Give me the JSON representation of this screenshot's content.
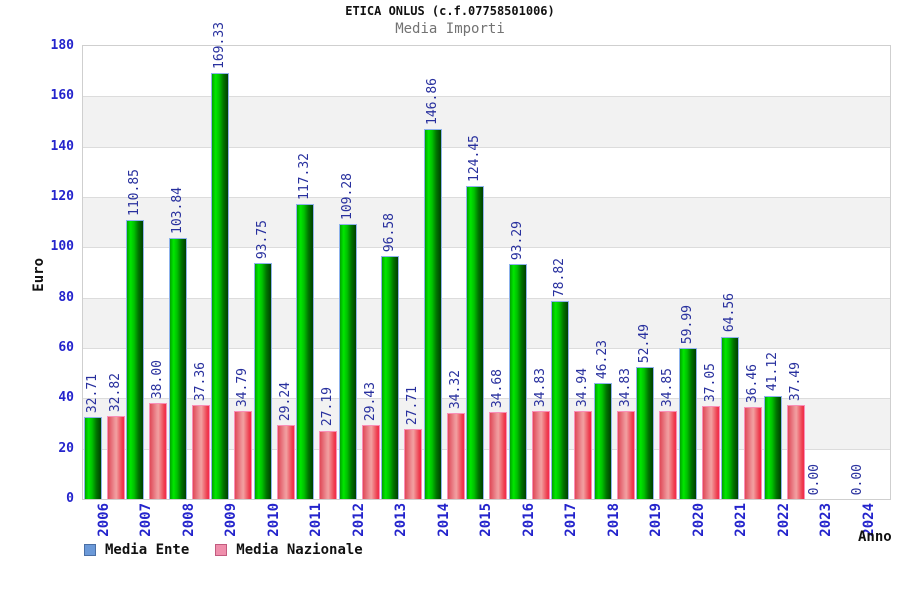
{
  "page": {
    "title": "ETICA ONLUS (c.f.07758501006)",
    "subtitle": "Media Importi"
  },
  "chart_data": {
    "type": "bar",
    "title": "ETICA ONLUS (c.f.07758501006)",
    "subtitle": "Media Importi",
    "xlabel": "Anno",
    "ylabel": "Euro",
    "ylim": [
      0,
      180
    ],
    "ytick_step": 20,
    "grid": "horizontal-bands-alternating",
    "legend_position": "bottom-left",
    "categories": [
      "2006",
      "2007",
      "2008",
      "2009",
      "2010",
      "2011",
      "2012",
      "2013",
      "2014",
      "2015",
      "2016",
      "2017",
      "2018",
      "2019",
      "2020",
      "2021",
      "2022",
      "2023",
      "2024"
    ],
    "series": [
      {
        "name": "Media Ente",
        "legend_color": "#6b99d8",
        "legend_border": "#4a6fa5",
        "bar_border": "#8fb2ec",
        "bar_gradient": [
          "#00a300 0%",
          "#00e800 22%",
          "#00c000 45%",
          "#007200 72%",
          "#003f00 100%"
        ],
        "values": [
          32.71,
          110.85,
          103.84,
          169.33,
          93.75,
          117.32,
          109.28,
          96.58,
          146.86,
          124.45,
          93.29,
          78.82,
          46.23,
          52.49,
          59.99,
          64.56,
          41.12,
          0.0,
          0.0
        ]
      },
      {
        "name": "Media Nazionale",
        "legend_color": "#ef8fac",
        "legend_border": "#c25b7f",
        "bar_border": "#f98fb8",
        "bar_gradient": [
          "#e04a58 0%",
          "#ee9398 42%",
          "#f2a0a0 52%",
          "#ee3f50 88%",
          "#f22a49 100%"
        ],
        "values": [
          32.82,
          38.0,
          37.36,
          34.79,
          29.24,
          27.19,
          29.43,
          27.71,
          34.32,
          34.68,
          34.83,
          34.94,
          34.83,
          34.85,
          37.05,
          36.46,
          37.49,
          0.0,
          0.0
        ]
      }
    ],
    "colors": {
      "band_gray": "#f2f2f2",
      "band_white": "#ffffff",
      "gridline": "#dcdcdc",
      "plot_border": "#cfcfcf",
      "axis_text": "#2424cc",
      "value_text": "#28309e"
    }
  }
}
